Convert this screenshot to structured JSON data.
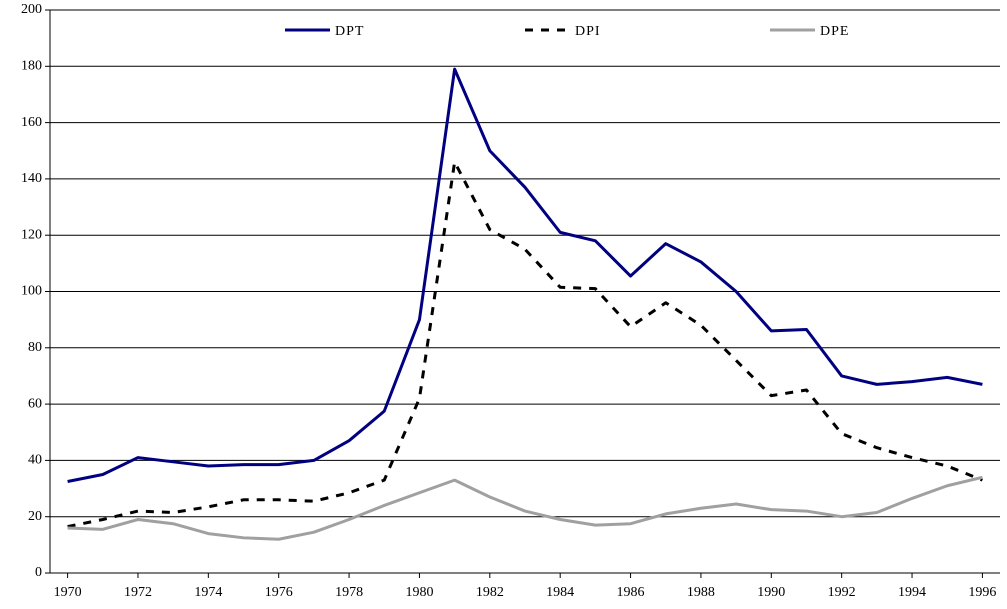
{
  "chart_data": {
    "type": "line",
    "x": [
      1970,
      1971,
      1972,
      1973,
      1974,
      1975,
      1976,
      1977,
      1978,
      1979,
      1980,
      1981,
      1982,
      1983,
      1984,
      1985,
      1986,
      1987,
      1988,
      1989,
      1990,
      1991,
      1992,
      1993,
      1994,
      1995,
      1996
    ],
    "series": [
      {
        "name": "DPT",
        "color": "#000080",
        "line_style": "solid",
        "values": [
          32.5,
          35,
          41,
          39.5,
          38,
          38.5,
          38.5,
          40,
          47,
          57.5,
          90,
          179,
          150,
          137,
          121,
          118,
          105.5,
          117,
          110.5,
          100,
          86,
          86.5,
          70,
          67,
          68,
          69.5,
          67
        ]
      },
      {
        "name": "DPI",
        "color": "#000000",
        "line_style": "dashed",
        "values": [
          16.5,
          19,
          22,
          21.5,
          23.5,
          26,
          26,
          25.5,
          28.5,
          33,
          62,
          146,
          122,
          115,
          101.5,
          101,
          87.5,
          96,
          88,
          75.5,
          63,
          65,
          49.5,
          44.5,
          41,
          38,
          33
        ]
      },
      {
        "name": "DPE",
        "color": "#a0a0a0",
        "line_style": "solid",
        "values": [
          16,
          15.5,
          19,
          17.5,
          14,
          12.5,
          12,
          14.5,
          19,
          24,
          28.5,
          33,
          27,
          22,
          19,
          17,
          17.5,
          21,
          23,
          24.5,
          22.5,
          22,
          20,
          21.5,
          26.5,
          31,
          34
        ]
      }
    ],
    "xlim": [
      1969.5,
      1996.5
    ],
    "xticks": [
      1970,
      1972,
      1974,
      1976,
      1978,
      1980,
      1982,
      1984,
      1986,
      1988,
      1990,
      1992,
      1994,
      1996
    ],
    "ylim": [
      0,
      200
    ],
    "yticks": [
      0,
      20,
      40,
      60,
      80,
      100,
      120,
      140,
      160,
      180,
      200
    ],
    "grid": true,
    "legend": "top"
  }
}
